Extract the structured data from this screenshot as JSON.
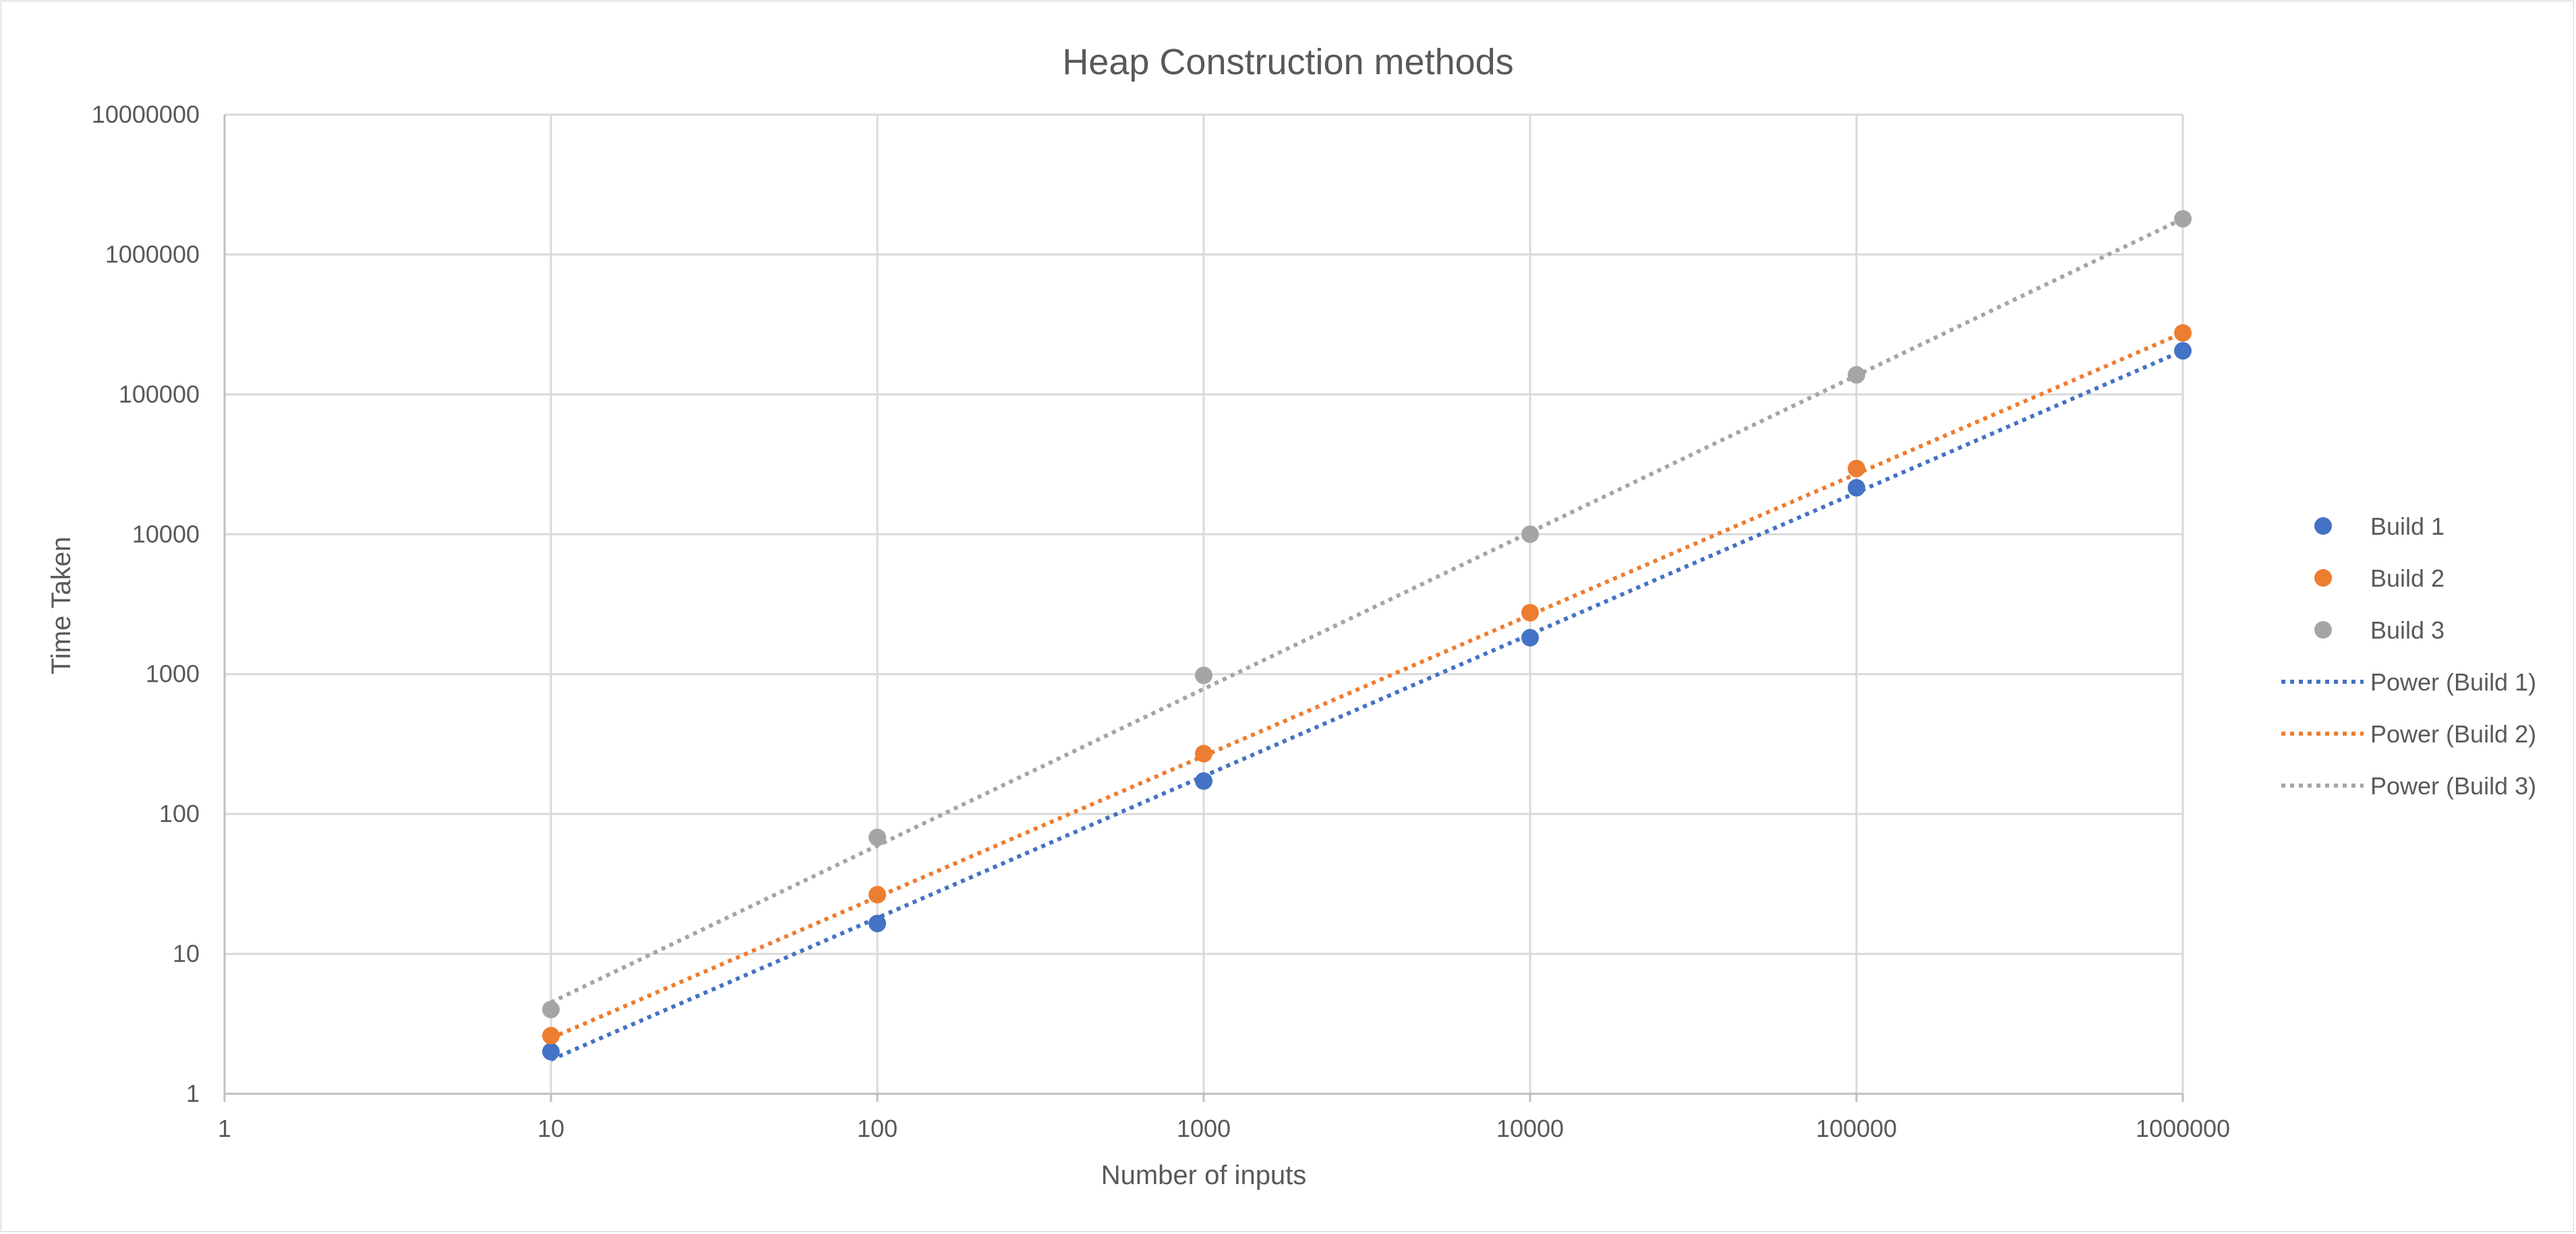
{
  "chart_data": {
    "type": "scatter",
    "title": "Heap Construction methods",
    "xlabel": "Number of inputs",
    "ylabel": "Time Taken",
    "x_scale": "log",
    "y_scale": "log",
    "xlim": [
      1,
      1000000
    ],
    "ylim": [
      1,
      10000000
    ],
    "x_ticks": [
      "1",
      "10",
      "100",
      "1000",
      "10000",
      "100000",
      "1000000"
    ],
    "y_ticks": [
      "1",
      "10",
      "100",
      "1000",
      "10000",
      "100000",
      "1000000",
      "10000000"
    ],
    "grid": true,
    "legend_position": "right",
    "x": [
      10,
      100,
      1000,
      10000,
      100000,
      1000000
    ],
    "series": [
      {
        "name": "Build 1",
        "color": "#4472C4",
        "values": [
          2,
          16.5,
          172,
          1820,
          21500,
          205000
        ]
      },
      {
        "name": "Build 2",
        "color": "#ED7D31",
        "values": [
          2.6,
          26.5,
          270,
          2750,
          29500,
          275000
        ]
      },
      {
        "name": "Build 3",
        "color": "#A5A5A5",
        "values": [
          4,
          68,
          980,
          10000,
          138000,
          1800000
        ]
      }
    ],
    "trendlines": [
      {
        "name": "Power (Build 1)",
        "series": "Build 1",
        "color": "#4472C4",
        "style": "dotted",
        "x_range": [
          10,
          1000000
        ],
        "y_range": [
          1.75,
          205000
        ]
      },
      {
        "name": "Power (Build 2)",
        "series": "Build 2",
        "color": "#ED7D31",
        "style": "dotted",
        "x_range": [
          10,
          1000000
        ],
        "y_range": [
          2.5,
          275000
        ]
      },
      {
        "name": "Power (Build 3)",
        "series": "Build 3",
        "color": "#A5A5A5",
        "style": "dotted",
        "x_range": [
          10,
          1000000
        ],
        "y_range": [
          4.5,
          1800000
        ]
      }
    ]
  }
}
